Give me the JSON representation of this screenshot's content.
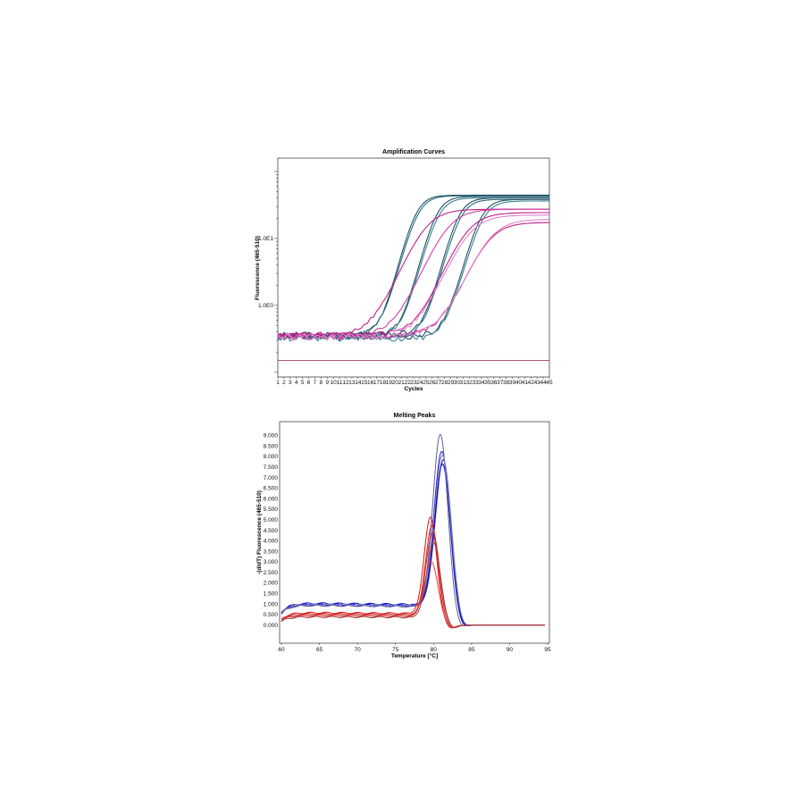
{
  "chart_data": [
    {
      "type": "line",
      "title": "Amplification Curves",
      "xlabel": "Cycles",
      "ylabel": "Fluorescence (465-510)",
      "yscale": "log",
      "xlim": [
        1,
        45
      ],
      "ylim_log10": [
        -1.07,
        2.2
      ],
      "x_ticks": [
        "1",
        "2",
        "3",
        "4",
        "5",
        "6",
        "7",
        "8",
        "9",
        "10",
        "11",
        "12",
        "13",
        "14",
        "15",
        "16",
        "17",
        "18",
        "19",
        "20",
        "21",
        "22",
        "23",
        "24",
        "25",
        "26",
        "27",
        "28",
        "29",
        "30",
        "31",
        "32",
        "33",
        "34",
        "35",
        "36",
        "37",
        "38",
        "39",
        "40",
        "41",
        "42",
        "43",
        "44",
        "45"
      ],
      "y_ticks": [
        {
          "label": "1.0E1",
          "value": 10
        },
        {
          "label": "1.0E0",
          "value": 1
        }
      ],
      "threshold": 0.15,
      "threshold_color": "#a0405a",
      "model": "baseline + plateau / (1 + exp(-(cycle - midpoint) / slope))",
      "series": [
        {
          "name": "teal-1",
          "color": "#1f4f66",
          "baseline": 0.36,
          "plateau": 44,
          "midpoint": 23.3,
          "slope": 1.15
        },
        {
          "name": "teal-2",
          "color": "#2a6f80",
          "baseline": 0.35,
          "plateau": 43,
          "midpoint": 23.6,
          "slope": 1.2
        },
        {
          "name": "teal-3",
          "color": "#1f4f66",
          "baseline": 0.34,
          "plateau": 42,
          "midpoint": 26.6,
          "slope": 1.15
        },
        {
          "name": "teal-4",
          "color": "#3b8090",
          "baseline": 0.35,
          "plateau": 40,
          "midpoint": 26.9,
          "slope": 1.2
        },
        {
          "name": "teal-5",
          "color": "#1f4f66",
          "baseline": 0.36,
          "plateau": 40,
          "midpoint": 30.2,
          "slope": 1.15
        },
        {
          "name": "teal-6",
          "color": "#2a6f80",
          "baseline": 0.34,
          "plateau": 38,
          "midpoint": 30.5,
          "slope": 1.2
        },
        {
          "name": "teal-7",
          "color": "#1f4f66",
          "baseline": 0.35,
          "plateau": 38,
          "midpoint": 33.8,
          "slope": 1.2
        },
        {
          "name": "teal-8",
          "color": "#3b8090",
          "baseline": 0.33,
          "plateau": 36,
          "midpoint": 34.1,
          "slope": 1.25
        },
        {
          "name": "magenta-1",
          "color": "#c0208c",
          "baseline": 0.36,
          "plateau": 27,
          "midpoint": 24.8,
          "slope": 1.9
        },
        {
          "name": "magenta-2",
          "color": "#d040a8",
          "baseline": 0.35,
          "plateau": 27,
          "midpoint": 28.4,
          "slope": 1.9
        },
        {
          "name": "magenta-3",
          "color": "#c0208c",
          "baseline": 0.35,
          "plateau": 24,
          "midpoint": 31.6,
          "slope": 1.9
        },
        {
          "name": "magenta-4",
          "color": "#e080c8",
          "baseline": 0.34,
          "plateau": 22,
          "midpoint": 31.9,
          "slope": 1.95
        },
        {
          "name": "magenta-5",
          "color": "#c0208c",
          "baseline": 0.35,
          "plateau": 17,
          "midpoint": 35.0,
          "slope": 1.9
        },
        {
          "name": "magenta-6",
          "color": "#e080c8",
          "baseline": 0.34,
          "plateau": 19,
          "midpoint": 35.3,
          "slope": 1.95
        }
      ]
    },
    {
      "type": "line",
      "title": "Melting Peaks",
      "xlabel": "Temperature [°C]",
      "ylabel": "-(d/dT) Fluorescence (465-510)",
      "xlim": [
        60,
        95
      ],
      "ylim": [
        -0.85,
        9.66
      ],
      "x_ticks": [
        "60",
        "65",
        "70",
        "75",
        "80",
        "85",
        "90",
        "95"
      ],
      "y_ticks": [
        "0.000",
        "0.500",
        "1.000",
        "1.500",
        "2.000",
        "2.500",
        "3.000",
        "3.500",
        "4.000",
        "4.500",
        "5.000",
        "5.500",
        "6.000",
        "6.500",
        "7.000",
        "7.500",
        "8.000",
        "8.500",
        "9.000"
      ],
      "model": "shoulder plateau + gaussian peak",
      "series": [
        {
          "name": "blue-1",
          "color": "#0000c8",
          "plateau": 1.05,
          "start": 0.6,
          "peak_temp": 81.2,
          "peak_height": 7.6,
          "width": 1.05
        },
        {
          "name": "blue-2",
          "color": "#1010d0",
          "plateau": 1.0,
          "start": 0.55,
          "peak_temp": 81.3,
          "peak_height": 7.8,
          "width": 1.05
        },
        {
          "name": "blue-3",
          "color": "#2020b0",
          "plateau": 0.95,
          "start": 0.6,
          "peak_temp": 81.1,
          "peak_height": 8.2,
          "width": 1.05
        },
        {
          "name": "blue-4",
          "color": "#6060a0",
          "plateau": 0.95,
          "start": 0.55,
          "peak_temp": 80.9,
          "peak_height": 9.0,
          "width": 1.0
        },
        {
          "name": "blue-5",
          "color": "#8080c0",
          "plateau": 1.0,
          "start": 0.6,
          "peak_temp": 81.2,
          "peak_height": 8.0,
          "width": 1.1
        },
        {
          "name": "red-1",
          "color": "#e01010",
          "plateau": 0.6,
          "start": 0.3,
          "peak_temp": 79.6,
          "peak_height": 5.1,
          "width": 0.85
        },
        {
          "name": "red-2",
          "color": "#d02020",
          "plateau": 0.55,
          "start": 0.25,
          "peak_temp": 79.8,
          "peak_height": 4.7,
          "width": 0.85
        },
        {
          "name": "red-3",
          "color": "#c03030",
          "plateau": 0.5,
          "start": 0.2,
          "peak_temp": 79.9,
          "peak_height": 4.4,
          "width": 0.9
        },
        {
          "name": "red-4",
          "color": "#e04040",
          "plateau": 0.45,
          "start": 0.25,
          "peak_temp": 79.7,
          "peak_height": 3.0,
          "width": 0.9
        },
        {
          "name": "red-5",
          "color": "#a04040",
          "plateau": 0.4,
          "start": 0.2,
          "peak_temp": 80.0,
          "peak_height": 3.9,
          "width": 0.9
        }
      ]
    }
  ]
}
